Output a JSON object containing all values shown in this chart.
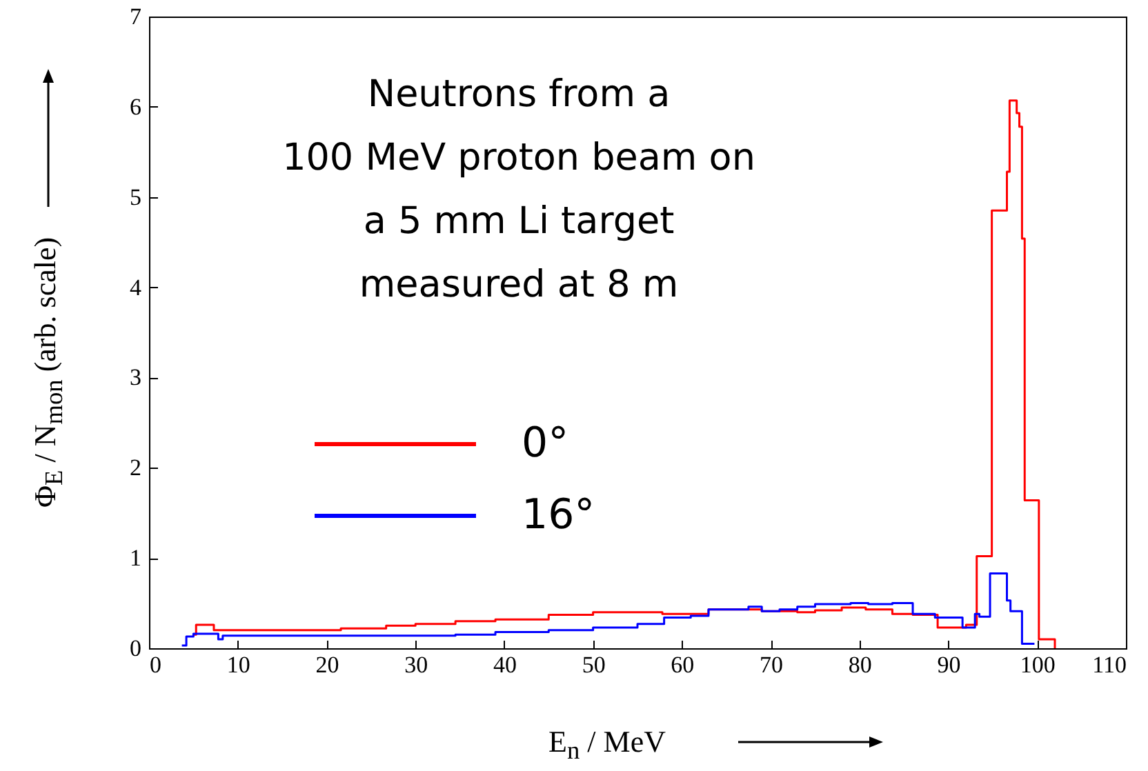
{
  "chart_data": {
    "type": "step",
    "xlabel": "E$_{n}$ / MeV",
    "ylabel": "Φ$_{E}$ / N$_{mon}$ (arb. scale)",
    "annotations": [
      "Neutrons from a\n100 MeV proton beam on\na 5 mm Li target\nmeasured at 8 m"
    ],
    "xlim": [
      0,
      110
    ],
    "xticks": [
      0,
      10,
      20,
      30,
      40,
      50,
      60,
      70,
      80,
      90,
      100,
      110
    ],
    "ylim": [
      0,
      7
    ],
    "yticks": [
      0,
      1,
      2,
      3,
      4,
      5,
      6,
      7
    ],
    "legend": "left",
    "grid": false,
    "series": [
      {
        "name": "0°",
        "color": "#ff0000",
        "x": [
          5,
          5.3,
          7.3,
          21.6,
          26.7,
          30,
          34.5,
          39,
          45,
          50,
          57.8,
          63,
          69,
          73,
          75,
          78,
          80.7,
          83.7,
          86,
          88.8,
          92,
          93.2,
          94.9,
          96.6,
          96.9,
          97.7,
          98,
          98.3,
          98.6,
          100.2,
          102
        ],
        "values": [
          0.15,
          0.26,
          0.2,
          0.22,
          0.25,
          0.27,
          0.3,
          0.32,
          0.37,
          0.4,
          0.38,
          0.43,
          0.41,
          0.4,
          0.42,
          0.45,
          0.43,
          0.38,
          0.37,
          0.23,
          0.26,
          1.02,
          4.85,
          5.28,
          6.07,
          5.93,
          5.78,
          4.54,
          1.64,
          0.1,
          0
        ]
      },
      {
        "name": "16°",
        "color": "#0000ff",
        "x": [
          3.7,
          4.2,
          5,
          7.8,
          8.3,
          34.5,
          39,
          45,
          50,
          55,
          58,
          61,
          63,
          67.5,
          69,
          71,
          73,
          75,
          79,
          81,
          83.7,
          86,
          88.5,
          91.6,
          93,
          93.5,
          94.7,
          96.6,
          97,
          98.3,
          99.7
        ],
        "values": [
          0.03,
          0.13,
          0.16,
          0.1,
          0.14,
          0.15,
          0.18,
          0.2,
          0.23,
          0.27,
          0.34,
          0.36,
          0.43,
          0.46,
          0.41,
          0.43,
          0.46,
          0.49,
          0.5,
          0.49,
          0.5,
          0.38,
          0.34,
          0.23,
          0.38,
          0.35,
          0.83,
          0.53,
          0.41,
          0.05,
          0.05
        ]
      }
    ]
  }
}
